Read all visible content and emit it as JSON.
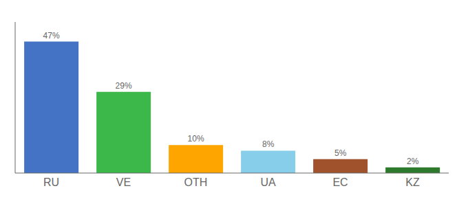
{
  "chart_data": {
    "type": "bar",
    "categories": [
      "RU",
      "VE",
      "OTH",
      "UA",
      "EC",
      "KZ"
    ],
    "values": [
      47,
      29,
      10,
      8,
      5,
      2
    ],
    "value_labels": [
      "47%",
      "29%",
      "10%",
      "8%",
      "5%",
      "2%"
    ],
    "colors": [
      "#4472C4",
      "#3CB84A",
      "#FFA500",
      "#87CEEB",
      "#A0522D",
      "#2D7A2D"
    ],
    "ylim": [
      0,
      54
    ],
    "data_labels": true,
    "tick_labels": "x",
    "grid": false
  }
}
